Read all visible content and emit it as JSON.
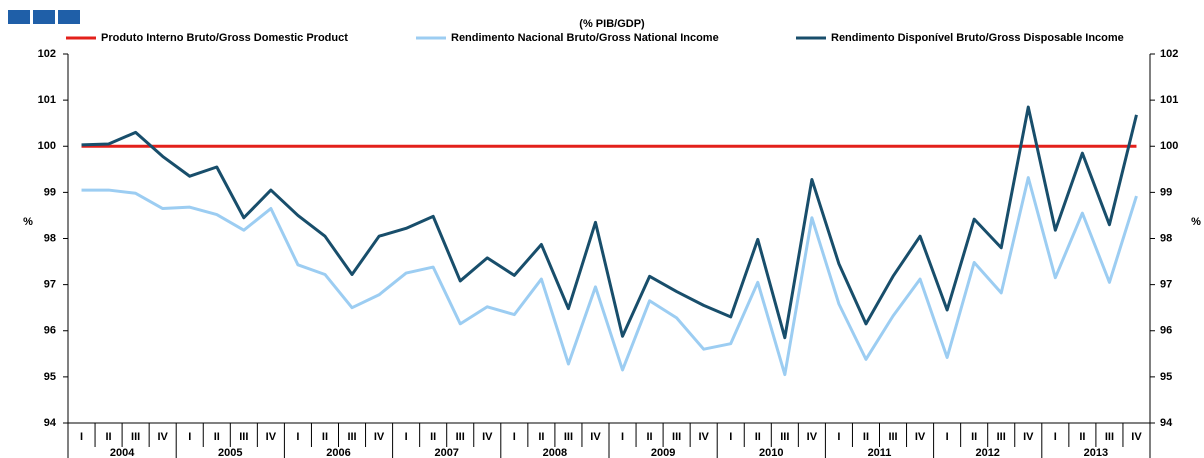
{
  "chart_data": {
    "type": "line",
    "title": "(% PIB/GDP)",
    "categories": [
      "I",
      "II",
      "III",
      "IV",
      "I",
      "II",
      "III",
      "IV",
      "I",
      "II",
      "III",
      "IV",
      "I",
      "II",
      "III",
      "IV",
      "I",
      "II",
      "III",
      "IV",
      "I",
      "II",
      "III",
      "IV",
      "I",
      "II",
      "III",
      "IV",
      "I",
      "II",
      "III",
      "IV",
      "I",
      "II",
      "III",
      "IV",
      "I",
      "II",
      "III",
      "IV"
    ],
    "years": [
      "2004",
      "2005",
      "2006",
      "2007",
      "2008",
      "2009",
      "2010",
      "2011",
      "2012",
      "2013"
    ],
    "series": [
      {
        "name": "Produto Interno Bruto/Gross Domestic Product",
        "color": "#e3201b",
        "values": [
          100,
          100,
          100,
          100,
          100,
          100,
          100,
          100,
          100,
          100,
          100,
          100,
          100,
          100,
          100,
          100,
          100,
          100,
          100,
          100,
          100,
          100,
          100,
          100,
          100,
          100,
          100,
          100,
          100,
          100,
          100,
          100,
          100,
          100,
          100,
          100,
          100,
          100,
          100,
          100
        ]
      },
      {
        "name": "Rendimento Nacional Bruto/Gross National Income",
        "color": "#9ccdf2",
        "values": [
          99.05,
          99.05,
          98.98,
          98.65,
          98.68,
          98.52,
          98.18,
          98.65,
          97.43,
          97.22,
          96.5,
          96.78,
          97.25,
          97.38,
          96.15,
          96.52,
          96.35,
          97.12,
          95.28,
          96.95,
          95.15,
          96.65,
          96.28,
          95.6,
          95.72,
          97.05,
          95.05,
          98.45,
          96.58,
          95.38,
          96.32,
          97.12,
          95.42,
          97.48,
          96.82,
          99.32,
          97.15,
          98.55,
          97.05,
          98.92
        ]
      },
      {
        "name": "Rendimento Disponível Bruto/Gross Disposable Income",
        "color": "#184e6b",
        "values": [
          100.03,
          100.05,
          100.3,
          99.78,
          99.35,
          99.55,
          98.45,
          99.05,
          98.5,
          98.05,
          97.22,
          98.05,
          98.22,
          98.48,
          97.08,
          97.58,
          97.2,
          97.87,
          96.48,
          98.35,
          95.88,
          97.18,
          96.85,
          96.55,
          96.3,
          97.98,
          95.85,
          99.28,
          97.45,
          96.15,
          97.18,
          98.05,
          96.45,
          98.42,
          97.8,
          100.85,
          98.18,
          99.85,
          98.3,
          100.68
        ]
      }
    ],
    "ylim": [
      94,
      102
    ],
    "yticks": [
      94,
      95,
      96,
      97,
      98,
      99,
      100,
      101,
      102
    ],
    "y_label": "%",
    "y2lim": [
      94,
      102
    ],
    "y2ticks": [
      94,
      95,
      96,
      97,
      98,
      99,
      100,
      101,
      102
    ],
    "y2_label": "%"
  }
}
